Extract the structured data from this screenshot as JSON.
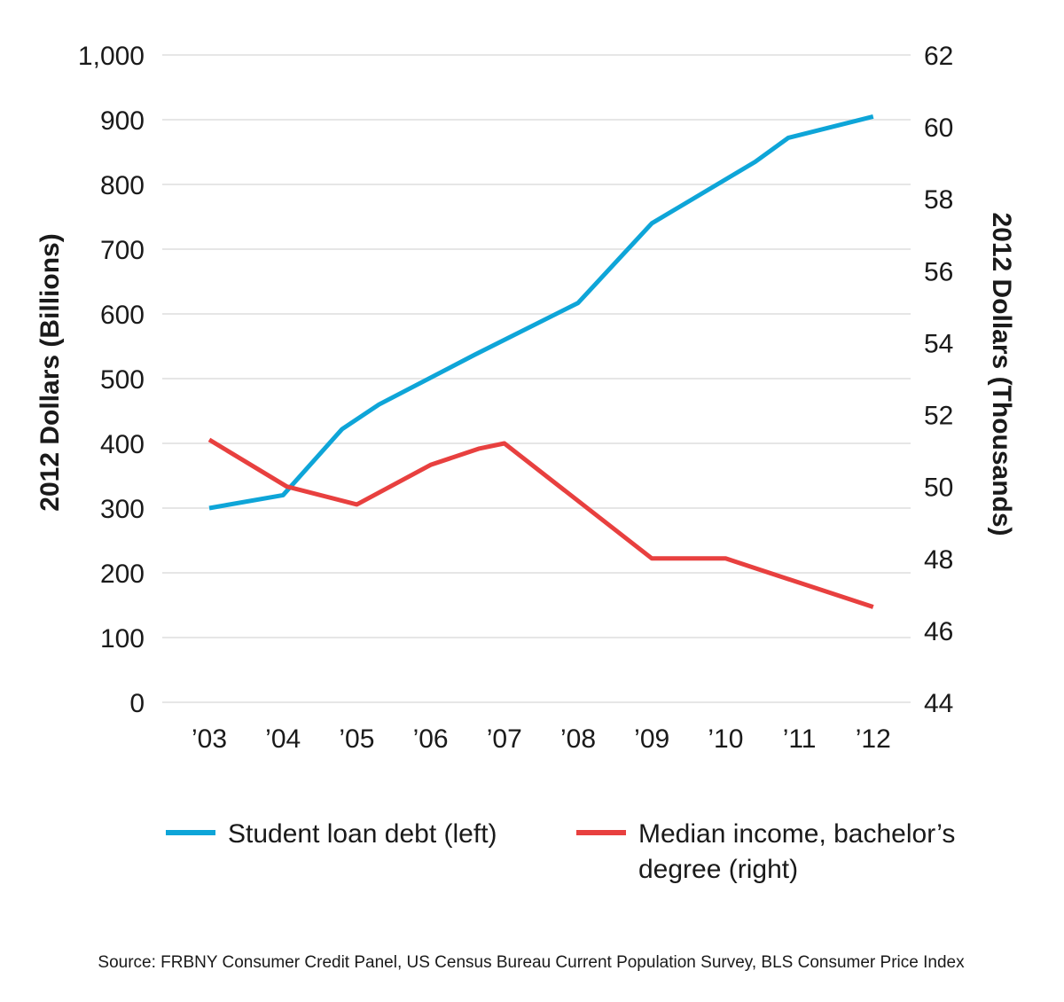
{
  "chart_data": {
    "type": "line",
    "title": "",
    "categories": [
      "’03",
      "’04",
      "’05",
      "’06",
      "’07",
      "’08",
      "’09",
      "’10",
      "’11",
      "’12"
    ],
    "left_axis": {
      "label": "2012 Dollars (Billions)",
      "ylim": [
        0,
        1000
      ],
      "ticks": [
        0,
        100,
        200,
        300,
        400,
        500,
        600,
        700,
        800,
        900,
        1000
      ],
      "tick_labels": [
        "0",
        "100",
        "200",
        "300",
        "400",
        "500",
        "600",
        "700",
        "800",
        "900",
        "1,000"
      ]
    },
    "right_axis": {
      "label": "2012 Dollars (Thousands)",
      "ylim": [
        44,
        62
      ],
      "ticks": [
        44,
        46,
        48,
        50,
        52,
        54,
        56,
        58,
        60,
        62
      ],
      "tick_labels": [
        "44",
        "46",
        "48",
        "50",
        "52",
        "54",
        "56",
        "58",
        "60",
        "62"
      ]
    },
    "series": [
      {
        "name": "Student loan debt (left)",
        "axis": "left",
        "color": "#0ea5d8",
        "points": [
          {
            "x": 0,
            "y": 300
          },
          {
            "x": 1,
            "y": 320
          },
          {
            "x": 1.8,
            "y": 422
          },
          {
            "x": 2.3,
            "y": 460
          },
          {
            "x": 3.6,
            "y": 537
          },
          {
            "x": 5,
            "y": 617
          },
          {
            "x": 6,
            "y": 740
          },
          {
            "x": 7.4,
            "y": 835
          },
          {
            "x": 7.85,
            "y": 872
          },
          {
            "x": 9,
            "y": 905
          }
        ]
      },
      {
        "name": "Median income, bachelor’s degree (right)",
        "axis": "right",
        "color": "#e8403f",
        "points": [
          {
            "x": 0,
            "y": 51.3
          },
          {
            "x": 1.05,
            "y": 50.0
          },
          {
            "x": 2,
            "y": 49.5
          },
          {
            "x": 3,
            "y": 50.6
          },
          {
            "x": 3.65,
            "y": 51.05
          },
          {
            "x": 4,
            "y": 51.2
          },
          {
            "x": 6,
            "y": 48.0
          },
          {
            "x": 7,
            "y": 48.0
          },
          {
            "x": 9,
            "y": 46.65
          }
        ]
      }
    ],
    "legend": {
      "position": "bottom",
      "items": [
        {
          "label": "Student loan debt (left)"
        },
        {
          "label_line1": "Median income, bachelor’s",
          "label_line2": "degree (right)"
        }
      ]
    },
    "source": "Source: FRBNY Consumer Credit Panel, US Census Bureau Current Population Survey, BLS Consumer Price Index"
  }
}
